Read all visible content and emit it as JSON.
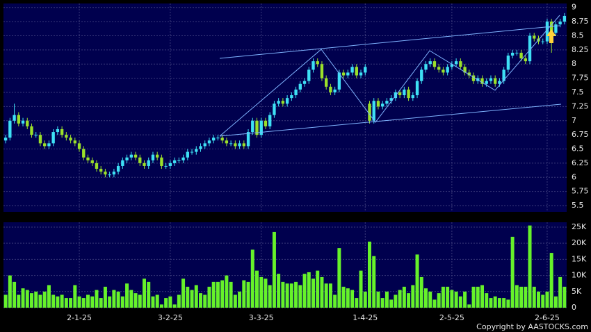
{
  "chart_data": {
    "type": "candlestick",
    "categories": [
      null,
      null,
      null,
      null,
      null,
      null,
      null,
      null,
      null,
      null,
      null,
      null,
      null,
      null,
      null,
      null,
      null,
      "2-1-25",
      null,
      null,
      null,
      null,
      null,
      null,
      null,
      null,
      null,
      null,
      null,
      null,
      null,
      null,
      null,
      null,
      null,
      null,
      null,
      null,
      "3-2-25",
      null,
      null,
      null,
      null,
      null,
      null,
      null,
      null,
      null,
      null,
      null,
      null,
      null,
      null,
      null,
      null,
      null,
      null,
      null,
      null,
      "3-3-25",
      null,
      null,
      null,
      null,
      null,
      null,
      null,
      null,
      null,
      null,
      null,
      null,
      null,
      null,
      null,
      null,
      null,
      null,
      null,
      null,
      null,
      null,
      null,
      "1-4-25",
      null,
      null,
      null,
      null,
      null,
      null,
      null,
      null,
      null,
      null,
      null,
      null,
      null,
      null,
      null,
      null,
      null,
      null,
      null,
      "2-5-25",
      null,
      null,
      null,
      null,
      null,
      null,
      null,
      null,
      null,
      null,
      null,
      null,
      null,
      null,
      null,
      null,
      null,
      null,
      null,
      null,
      null,
      "2-6-25",
      null,
      null,
      null,
      null
    ],
    "open": [
      6.65,
      6.7,
      7.0,
      7.1,
      6.95,
      7.0,
      6.9,
      6.75,
      6.75,
      6.6,
      6.55,
      6.6,
      6.8,
      6.85,
      6.75,
      6.7,
      6.65,
      6.6,
      6.5,
      6.35,
      6.3,
      6.25,
      6.15,
      6.1,
      6.05,
      6.05,
      6.1,
      6.2,
      6.3,
      6.35,
      6.4,
      6.35,
      6.25,
      6.2,
      6.3,
      6.4,
      6.35,
      6.2,
      6.2,
      6.25,
      6.3,
      6.3,
      6.35,
      6.45,
      6.45,
      6.5,
      6.55,
      6.6,
      6.65,
      6.7,
      6.7,
      6.65,
      6.6,
      6.6,
      6.55,
      6.6,
      6.55,
      6.8,
      7.0,
      6.75,
      7.0,
      6.9,
      7.1,
      7.3,
      7.35,
      7.3,
      7.4,
      7.45,
      7.55,
      7.65,
      7.7,
      7.9,
      8.05,
      8.0,
      7.75,
      7.6,
      7.5,
      7.55,
      7.85,
      7.8,
      7.85,
      7.95,
      7.8,
      7.85,
      7.3,
      7.0,
      7.35,
      7.25,
      7.3,
      7.35,
      7.4,
      7.5,
      7.45,
      7.55,
      7.4,
      7.45,
      7.7,
      7.9,
      8.0,
      8.05,
      7.95,
      7.9,
      7.85,
      7.95,
      8.0,
      8.05,
      7.95,
      7.85,
      7.8,
      7.7,
      7.75,
      7.65,
      7.7,
      7.75,
      7.65,
      7.7,
      7.9,
      8.15,
      8.2,
      8.2,
      8.1,
      8.05,
      8.5,
      8.45,
      8.4,
      8.4,
      8.75,
      8.55,
      8.7,
      8.75
    ],
    "high": [
      6.75,
      7.05,
      7.3,
      7.15,
      7.05,
      7.05,
      6.95,
      6.8,
      6.8,
      6.65,
      6.65,
      6.85,
      6.9,
      6.9,
      6.8,
      6.75,
      6.7,
      6.65,
      6.55,
      6.4,
      6.35,
      6.3,
      6.2,
      6.15,
      6.1,
      6.15,
      6.25,
      6.35,
      6.4,
      6.45,
      6.45,
      6.4,
      6.3,
      6.35,
      6.45,
      6.45,
      6.4,
      6.25,
      6.3,
      6.35,
      6.35,
      6.4,
      6.5,
      6.5,
      6.55,
      6.6,
      6.65,
      6.7,
      6.75,
      6.75,
      6.75,
      6.7,
      6.65,
      6.65,
      6.65,
      6.65,
      6.85,
      7.05,
      7.05,
      7.05,
      7.05,
      7.15,
      7.35,
      7.4,
      7.4,
      7.45,
      7.5,
      7.6,
      7.7,
      7.75,
      7.95,
      8.1,
      8.1,
      8.05,
      7.8,
      7.65,
      7.6,
      7.9,
      7.9,
      7.9,
      8.0,
      8.0,
      7.9,
      8.0,
      7.35,
      7.4,
      7.4,
      7.35,
      7.4,
      7.45,
      7.55,
      7.55,
      7.6,
      7.6,
      7.5,
      7.75,
      7.95,
      8.05,
      8.1,
      8.1,
      8.0,
      7.95,
      8.0,
      8.05,
      8.1,
      8.1,
      8.0,
      7.9,
      7.85,
      7.8,
      7.8,
      7.75,
      7.8,
      7.8,
      7.75,
      7.95,
      8.2,
      8.25,
      8.25,
      8.25,
      8.15,
      8.55,
      8.55,
      8.5,
      8.45,
      8.8,
      8.8,
      8.75,
      8.8,
      8.9
    ],
    "low": [
      6.6,
      6.65,
      6.95,
      6.9,
      6.9,
      6.85,
      6.7,
      6.7,
      6.55,
      6.5,
      6.5,
      6.55,
      6.75,
      6.7,
      6.65,
      6.6,
      6.55,
      6.45,
      6.3,
      6.25,
      6.2,
      6.1,
      6.05,
      6.0,
      6.0,
      6.0,
      6.05,
      6.15,
      6.25,
      6.3,
      6.3,
      6.2,
      6.15,
      6.15,
      6.25,
      6.3,
      6.15,
      6.15,
      6.15,
      6.2,
      6.25,
      6.25,
      6.3,
      6.4,
      6.4,
      6.45,
      6.5,
      6.55,
      6.6,
      6.65,
      6.6,
      6.55,
      6.55,
      6.5,
      6.5,
      6.5,
      6.5,
      6.75,
      6.7,
      6.7,
      6.85,
      6.85,
      7.05,
      7.25,
      7.25,
      7.25,
      7.35,
      7.4,
      7.5,
      7.6,
      7.65,
      7.85,
      7.95,
      7.7,
      7.55,
      7.45,
      7.45,
      7.5,
      7.75,
      7.75,
      7.8,
      7.75,
      7.75,
      7.8,
      6.95,
      6.95,
      7.2,
      7.2,
      7.25,
      7.3,
      7.35,
      7.4,
      7.4,
      7.35,
      7.35,
      7.4,
      7.65,
      7.85,
      7.95,
      7.9,
      7.85,
      7.8,
      7.8,
      7.9,
      7.95,
      7.9,
      7.8,
      7.75,
      7.65,
      7.65,
      7.6,
      7.6,
      7.65,
      7.6,
      7.6,
      7.65,
      7.85,
      8.1,
      8.15,
      8.05,
      8.0,
      8.0,
      8.4,
      8.35,
      8.35,
      8.35,
      8.2,
      8.5,
      8.65,
      8.7
    ],
    "close": [
      6.7,
      7.0,
      7.1,
      6.95,
      7.0,
      6.9,
      6.75,
      6.75,
      6.6,
      6.55,
      6.6,
      6.8,
      6.85,
      6.75,
      6.7,
      6.65,
      6.6,
      6.5,
      6.35,
      6.3,
      6.25,
      6.15,
      6.1,
      6.05,
      6.05,
      6.1,
      6.2,
      6.3,
      6.35,
      6.4,
      6.35,
      6.25,
      6.2,
      6.3,
      6.4,
      6.35,
      6.2,
      6.2,
      6.25,
      6.3,
      6.3,
      6.35,
      6.45,
      6.45,
      6.5,
      6.55,
      6.6,
      6.65,
      6.7,
      6.7,
      6.65,
      6.6,
      6.6,
      6.55,
      6.6,
      6.55,
      6.8,
      7.0,
      6.75,
      7.0,
      6.9,
      7.1,
      7.3,
      7.35,
      7.3,
      7.4,
      7.45,
      7.55,
      7.65,
      7.7,
      7.9,
      8.05,
      8.0,
      7.75,
      7.6,
      7.5,
      7.55,
      7.85,
      7.8,
      7.85,
      7.95,
      7.8,
      7.85,
      7.95,
      7.0,
      7.35,
      7.25,
      7.3,
      7.35,
      7.4,
      7.5,
      7.45,
      7.55,
      7.4,
      7.45,
      7.7,
      7.9,
      8.0,
      8.05,
      7.95,
      7.9,
      7.85,
      7.95,
      8.0,
      8.05,
      7.95,
      7.85,
      7.8,
      7.7,
      7.75,
      7.65,
      7.7,
      7.75,
      7.65,
      7.7,
      7.9,
      8.15,
      8.2,
      8.2,
      8.1,
      8.05,
      8.5,
      8.45,
      8.4,
      8.4,
      8.75,
      8.55,
      8.7,
      8.75,
      8.85
    ],
    "volume": [
      4000,
      10000,
      8000,
      4000,
      6000,
      5500,
      4500,
      5000,
      4000,
      5000,
      7000,
      4000,
      3500,
      4000,
      3000,
      3000,
      7000,
      3500,
      3000,
      4000,
      3500,
      5500,
      3000,
      6500,
      3500,
      5500,
      5000,
      3500,
      7500,
      5500,
      4500,
      4000,
      9000,
      8000,
      3500,
      4000,
      1000,
      3000,
      3500,
      1000,
      4000,
      9000,
      6500,
      5500,
      7000,
      4500,
      4000,
      6500,
      8000,
      8000,
      8500,
      10000,
      8000,
      4000,
      5000,
      8500,
      8000,
      18000,
      11500,
      9500,
      9000,
      7000,
      23500,
      10500,
      8000,
      7500,
      7500,
      8000,
      7000,
      10500,
      11000,
      9000,
      11500,
      9500,
      7500,
      7500,
      4000,
      18500,
      6500,
      6000,
      5500,
      3000,
      11500,
      5000,
      20500,
      16000,
      5000,
      3000,
      5000,
      2500,
      4000,
      5500,
      6500,
      4500,
      7000,
      16500,
      9500,
      6000,
      5000,
      2500,
      4500,
      6500,
      6500,
      5500,
      5000,
      3500,
      5000,
      1000,
      6500,
      6500,
      7000,
      4500,
      3000,
      3500,
      3000,
      3000,
      2500,
      22000,
      7000,
      6500,
      6500,
      25500,
      6500,
      5000,
      4000,
      5000,
      17000,
      3500,
      9500,
      6500
    ],
    "ylim": [
      5.39,
      9.07
    ],
    "yticks": [
      5.5,
      5.75,
      6,
      6.25,
      6.5,
      6.75,
      7,
      7.25,
      7.5,
      7.75,
      8,
      8.25,
      8.5,
      8.75,
      9
    ],
    "y2lim": [
      0,
      26500
    ],
    "y2ticks": [
      0,
      {
        "value": 5000,
        "label": "5K"
      },
      {
        "value": 10000,
        "label": "10K"
      },
      {
        "value": 15000,
        "label": "15K"
      },
      {
        "value": 20000,
        "label": "20K"
      },
      {
        "value": 25000,
        "label": "25K"
      }
    ],
    "up_color": "#3ee0f5",
    "down_color": "#9be02a",
    "volume_color": "#66f22a",
    "grid": true,
    "copyright": "Copyright by AASTOCKS.com"
  }
}
